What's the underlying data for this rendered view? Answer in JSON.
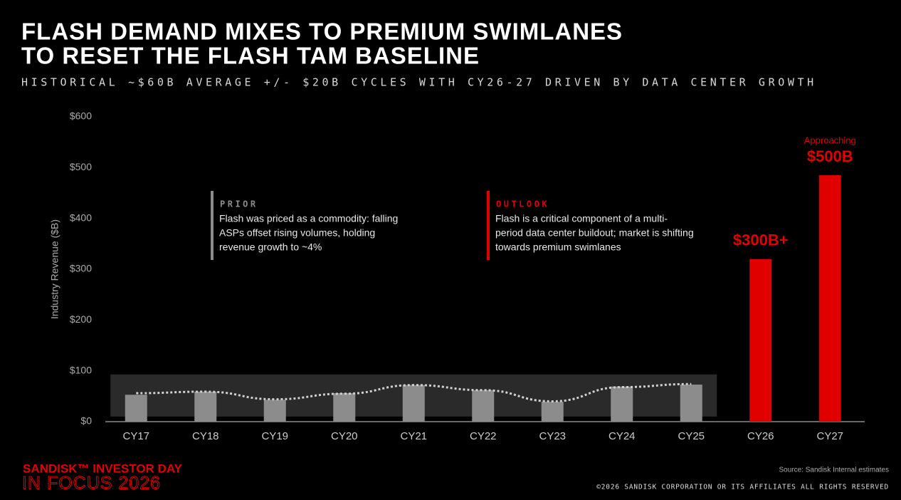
{
  "chart_data": {
    "type": "bar",
    "title": [
      "FLASH DEMAND MIXES TO PREMIUM SWIMLANES",
      "TO RESET THE FLASH TAM BASELINE"
    ],
    "subtitle": "HISTORICAL ~$60B AVERAGE +/- $20B CYCLES WITH CY26-27 DRIVEN BY DATA CENTER GROWTH",
    "y_label": "Industry Revenue ($B)",
    "categories": [
      "CY17",
      "CY18",
      "CY19",
      "CY20",
      "CY21",
      "CY22",
      "CY23",
      "CY24",
      "CY25",
      "CY26",
      "CY27"
    ],
    "values": [
      53,
      59,
      43,
      56,
      72,
      62,
      39,
      69,
      73,
      320,
      485
    ],
    "colors": [
      "#8c8c8c",
      "#8c8c8c",
      "#8c8c8c",
      "#8c8c8c",
      "#8c8c8c",
      "#8c8c8c",
      "#8c8c8c",
      "#8c8c8c",
      "#8c8c8c",
      "#e00000",
      "#e00000"
    ],
    "trend": {
      "values": [
        56,
        59,
        44,
        55,
        72,
        62,
        40,
        68,
        74,
        null,
        null
      ],
      "color": "#d0d0d0"
    },
    "band_range": [
      10,
      93
    ],
    "ylim": [
      0,
      600
    ],
    "yticks": [
      {
        "value": 0,
        "label": "$0"
      },
      {
        "value": 100,
        "label": "$100"
      },
      {
        "value": 200,
        "label": "$200"
      },
      {
        "value": 300,
        "label": "$300"
      },
      {
        "value": 400,
        "label": "$400"
      },
      {
        "value": 500,
        "label": "$500"
      },
      {
        "value": 600,
        "label": "$600"
      }
    ],
    "annotations": [
      {
        "category": 9,
        "lines": [
          "$300B+"
        ]
      },
      {
        "category": 10,
        "lines": [
          "Approaching",
          "$500B"
        ]
      }
    ],
    "callouts": [
      {
        "heading": "PRIOR",
        "color": "#8c8c8c",
        "lines": [
          "Flash was priced as a commodity: falling",
          "ASPs offset rising volumes, holding",
          "revenue growth to ~4%"
        ]
      },
      {
        "heading": "OUTLOOK",
        "color": "#e00000",
        "lines": [
          "Flash is a critical component of a multi-",
          "period data center buildout; market is shifting",
          "towards premium swimlanes"
        ]
      }
    ],
    "source": "Source: Sandisk Internal estimates"
  },
  "footer": {
    "brand": "SANDISK™ INVESTOR DAY",
    "event": "IN FOCUS 2026",
    "copyright": "©2026 SANDISK CORPORATION OR ITS AFFILIATES ALL RIGHTS RESERVED"
  }
}
